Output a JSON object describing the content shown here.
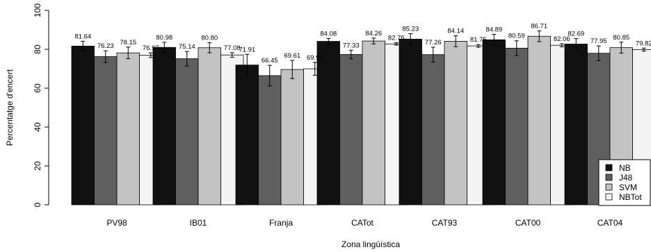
{
  "chart_data": {
    "type": "bar",
    "title": "",
    "xlabel": "Zona lingüística",
    "ylabel": "Percentatge d'encert",
    "ylim": [
      0,
      100
    ],
    "yticks": [
      0,
      20,
      40,
      60,
      80,
      100
    ],
    "grid": false,
    "legend_position": "bottom-right",
    "categories": [
      "PV98",
      "IB01",
      "Franja",
      "CATot",
      "CAT93",
      "CAT00",
      "CAT04"
    ],
    "series": [
      {
        "name": "NB",
        "color": "#111111",
        "values": [
          81.64,
          80.98,
          71.91,
          84.08,
          85.23,
          84.89,
          82.69
        ],
        "labels": [
          "81.64",
          "80.98",
          "71.91",
          "84.08",
          "85.23",
          "84.89",
          "82.69"
        ],
        "errors": [
          2.5,
          2.6,
          5.5,
          1.5,
          2.8,
          2.8,
          2.8
        ]
      },
      {
        "name": "J48",
        "color": "#5f5f5f",
        "values": [
          76.23,
          75.14,
          66.45,
          77.33,
          77.26,
          80.59,
          77.95
        ],
        "labels": [
          "76.23",
          "75.14",
          "66.45",
          "77.33",
          "77.26",
          "80.59",
          "77.95"
        ],
        "errors": [
          3.0,
          3.7,
          5.3,
          2.2,
          3.8,
          3.8,
          3.8
        ]
      },
      {
        "name": "SVM",
        "color": "#c3c3c3",
        "values": [
          78.15,
          80.8,
          69.61,
          84.26,
          84.14,
          86.71,
          80.85
        ],
        "labels": [
          "78.15",
          "80.80",
          "69.61",
          "84.26",
          "84.14",
          "86.71",
          "80.85"
        ],
        "errors": [
          3.0,
          2.6,
          4.7,
          1.5,
          2.8,
          2.8,
          2.8
        ]
      },
      {
        "name": "NBTot",
        "color": "#f4f4f4",
        "values": [
          76.97,
          77.08,
          69.97,
          82.76,
          81.75,
          82.06,
          79.82
        ],
        "labels": [
          "76.97",
          "77.08",
          "69.97",
          "82.76",
          "81.75",
          "82.06",
          "79.82"
        ],
        "errors": [
          1.2,
          1.2,
          3.3,
          0.6,
          0.7,
          0.8,
          0.8
        ]
      }
    ]
  }
}
